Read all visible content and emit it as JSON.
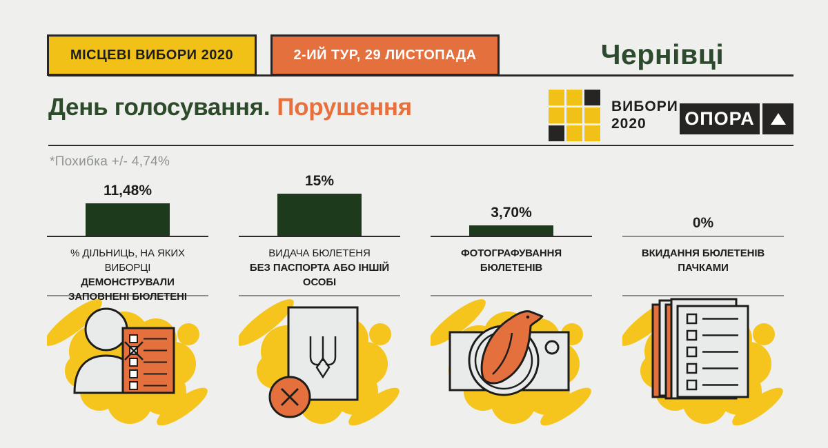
{
  "header": {
    "badges": [
      {
        "label": "МІСЦЕВІ ВИБОРИ 2020",
        "bg": "#f2c118"
      },
      {
        "label": "2-ИЙ ТУР, 29 ЛИСТОПАДА",
        "bg": "#e4703d"
      }
    ],
    "city": "Чернівці"
  },
  "title": {
    "part1": "День голосування.",
    "part2": "Порушення"
  },
  "logos": {
    "vybory2020": {
      "line1": "ВИБОРИ",
      "line2": "2020",
      "grid": [
        "yellow",
        "yellow",
        "black",
        "yellow",
        "yellow",
        "yellow",
        "black",
        "yellow",
        "yellow"
      ]
    },
    "opora": {
      "label": "ОПОРА"
    }
  },
  "note": "*Похибка +/- 4,74%",
  "colors": {
    "background": "#eff0ee",
    "yellow": "#f2c118",
    "orange": "#e4703d",
    "bar_green": "#1d3a1c",
    "title_green": "#2d4a2b",
    "gray_text": "#8e9290"
  },
  "chart_data": {
    "type": "bar",
    "title": "День голосування. Порушення",
    "note": "*Похибка +/- 4,74%",
    "unit": "%",
    "ylim": [
      0,
      15
    ],
    "bar_color": "#1d3a1c",
    "categories": [
      "% дільниць, на яких виборці демонстрували заповнені бюлетені",
      "Видача бюлетеня без паспорта або іншій особі",
      "Фотографування бюлетенів",
      "Вкидання бюлетенів пачками"
    ],
    "values": [
      11.48,
      15,
      3.7,
      0
    ],
    "value_labels": [
      "11,48%",
      "15%",
      "3,70%",
      "0%"
    ]
  },
  "columns": [
    {
      "value_label": "11,48%",
      "value": 11.48,
      "caption_lines": [
        {
          "text": "% ДІЛЬНИЦЬ, НА ЯКИХ ВИБОРЦІ",
          "bold": false
        },
        {
          "text": "ДЕМОНСТРУВАЛИ",
          "bold": true
        },
        {
          "text": "ЗАПОВНЕНІ БЮЛЕТЕНІ",
          "bold": true
        }
      ],
      "icon": "voter-showing-ballot-icon"
    },
    {
      "value_label": "15%",
      "value": 15,
      "caption_lines": [
        {
          "text": "ВИДАЧА БЮЛЕТЕНЯ",
          "bold": false
        },
        {
          "text": "БЕЗ ПАСПОРТА АБО ІНШІЙ",
          "bold": true
        },
        {
          "text": "ОСОБІ",
          "bold": true
        }
      ],
      "icon": "ballot-without-passport-icon"
    },
    {
      "value_label": "3,70%",
      "value": 3.7,
      "caption_lines": [
        {
          "text": "ФОТОГРАФУВАННЯ",
          "bold": true
        },
        {
          "text": "БЮЛЕТЕНІВ",
          "bold": true
        }
      ],
      "icon": "camera-bird-icon"
    },
    {
      "value_label": "0%",
      "value": 0,
      "caption_lines": [
        {
          "text": "ВКИДАННЯ БЮЛЕТЕНІВ",
          "bold": true
        },
        {
          "text": "ПАЧКАМИ",
          "bold": true
        }
      ],
      "icon": "ballot-stack-icon"
    }
  ]
}
